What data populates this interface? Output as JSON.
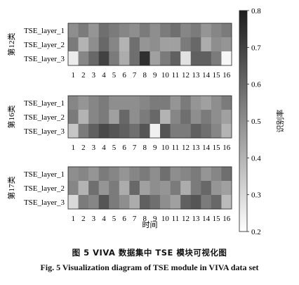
{
  "caption": {
    "cn": "图 5    VIVA 数据集中 TSE 模块可视化图",
    "en": "Fig. 5    Visualization diagram of TSE module in VIVA data set"
  },
  "chart_data": {
    "type": "heatmap",
    "xlabel": "时间",
    "x": [
      1,
      2,
      3,
      4,
      5,
      6,
      7,
      8,
      9,
      10,
      11,
      12,
      13,
      14,
      15,
      16
    ],
    "x_ticks": [
      "1",
      "2",
      "3",
      "4",
      "5",
      "6",
      "7",
      "8",
      "9",
      "10",
      "11",
      "12",
      "13",
      "14",
      "15",
      "16"
    ],
    "colorbar": {
      "label": "识别率",
      "range": [
        0.2,
        0.8
      ],
      "ticks": [
        0.2,
        0.3,
        0.4,
        0.5,
        0.6,
        0.7,
        0.8
      ],
      "tick_labels": [
        "0.2",
        "0.3",
        "0.4",
        "0.5",
        "0.6",
        "0.7",
        "0.8"
      ],
      "colormap": "gray_reversed",
      "low_color": "#ffffff",
      "high_color": "#1c1c1c"
    },
    "panels": [
      {
        "title": "第12类",
        "rows": [
          {
            "name": "TSE_layer_1",
            "values": [
              0.5,
              0.55,
              0.48,
              0.58,
              0.55,
              0.52,
              0.5,
              0.55,
              0.5,
              0.55,
              0.58,
              0.52,
              0.55,
              0.48,
              0.52,
              0.55
            ]
          },
          {
            "name": "TSE_layer_2",
            "values": [
              0.55,
              0.4,
              0.5,
              0.6,
              0.52,
              0.4,
              0.58,
              0.48,
              0.5,
              0.45,
              0.45,
              0.55,
              0.6,
              0.42,
              0.5,
              0.48
            ]
          },
          {
            "name": "TSE_layer_3",
            "values": [
              0.25,
              0.52,
              0.6,
              0.7,
              0.55,
              0.42,
              0.58,
              0.75,
              0.45,
              0.55,
              0.62,
              0.28,
              0.62,
              0.62,
              0.55,
              0.22
            ]
          }
        ]
      },
      {
        "title": "第16类",
        "rows": [
          {
            "name": "TSE_layer_1",
            "values": [
              0.52,
              0.48,
              0.52,
              0.55,
              0.5,
              0.5,
              0.5,
              0.52,
              0.55,
              0.55,
              0.48,
              0.55,
              0.48,
              0.45,
              0.5,
              0.55
            ]
          },
          {
            "name": "TSE_layer_2",
            "values": [
              0.55,
              0.4,
              0.52,
              0.55,
              0.45,
              0.6,
              0.5,
              0.55,
              0.6,
              0.4,
              0.52,
              0.58,
              0.5,
              0.55,
              0.5,
              0.45
            ]
          },
          {
            "name": "TSE_layer_3",
            "values": [
              0.35,
              0.55,
              0.62,
              0.68,
              0.65,
              0.62,
              0.58,
              0.65,
              0.24,
              0.65,
              0.55,
              0.55,
              0.62,
              0.58,
              0.52,
              0.4
            ]
          }
        ]
      },
      {
        "title": "第17类",
        "rows": [
          {
            "name": "TSE_layer_1",
            "values": [
              0.5,
              0.52,
              0.48,
              0.55,
              0.52,
              0.48,
              0.52,
              0.55,
              0.5,
              0.58,
              0.5,
              0.52,
              0.55,
              0.48,
              0.52,
              0.58
            ]
          },
          {
            "name": "TSE_layer_2",
            "values": [
              0.52,
              0.4,
              0.58,
              0.48,
              0.55,
              0.42,
              0.6,
              0.45,
              0.5,
              0.48,
              0.55,
              0.42,
              0.55,
              0.6,
              0.48,
              0.45
            ]
          },
          {
            "name": "TSE_layer_3",
            "values": [
              0.3,
              0.55,
              0.52,
              0.65,
              0.55,
              0.5,
              0.42,
              0.62,
              0.58,
              0.5,
              0.45,
              0.62,
              0.65,
              0.55,
              0.6,
              0.38
            ]
          }
        ]
      }
    ]
  }
}
